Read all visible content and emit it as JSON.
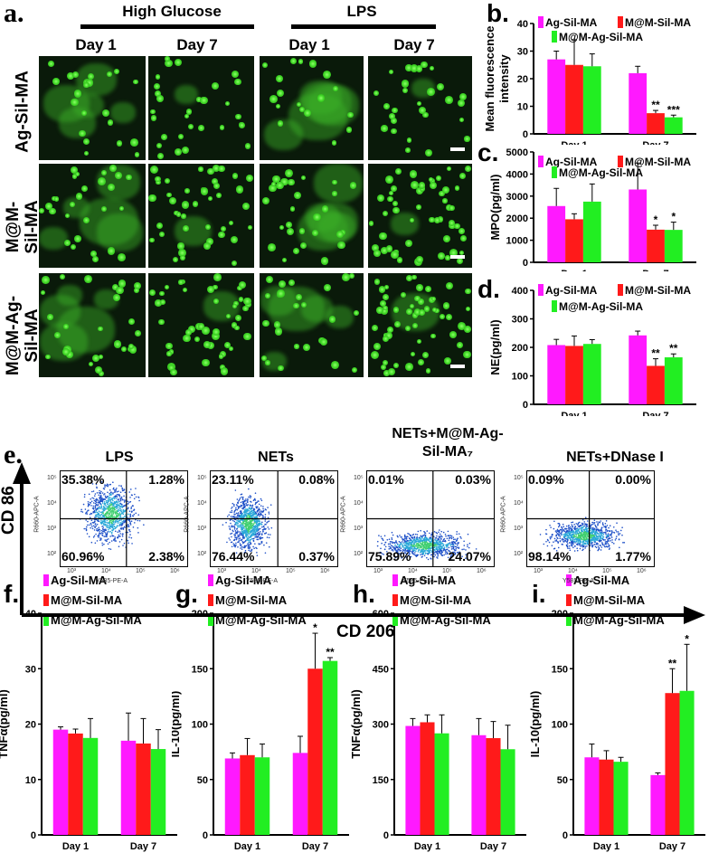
{
  "panel_a": {
    "label": "a.",
    "groups": [
      "High Glucose",
      "LPS"
    ],
    "columns": [
      "Day 1",
      "Day 7",
      "Day 1",
      "Day 7"
    ],
    "rows": [
      "Ag-Sil-MA",
      "M@M-Sil-MA",
      "M@M-Ag-Sil-MA"
    ],
    "row_lines": [
      [
        "Ag-Sil-MA"
      ],
      [
        "M@M-",
        "Sil-MA"
      ],
      [
        "M@M-Ag-",
        "Sil-MA"
      ]
    ]
  },
  "panel_e": {
    "label": "e.",
    "plots": [
      {
        "title": "LPS",
        "q": [
          "35.38%",
          "1.28%",
          "60.96%",
          "2.38%"
        ]
      },
      {
        "title": "NETs",
        "q": [
          "23.11%",
          "0.08%",
          "76.44%",
          "0.37%"
        ]
      },
      {
        "title": "NETs+M@M-Ag-Sil-MA₇",
        "title_lines": [
          "NETs+M@M-Ag-",
          "Sil-MA₇"
        ],
        "q": [
          "0.01%",
          "0.03%",
          "75.89%",
          "24.07%"
        ]
      },
      {
        "title": "NETs+DNase I",
        "q": [
          "0.09%",
          "0.00%",
          "98.14%",
          "1.77%"
        ]
      }
    ],
    "ylabel": "CD 86",
    "xlabel": "CD 206",
    "axis_x": "Y585-PE-A",
    "axis_y": "R660-APC-A"
  },
  "colors": {
    "Ag-Sil-MA": "#ff19ff",
    "M@M-Sil-MA": "#ff1a1a",
    "M@M-Ag-Sil-MA": "#22ee22"
  },
  "chart_data": [
    {
      "id": "b",
      "label": "b.",
      "type": "bar",
      "ylabel": "Mean fluorescence intensity",
      "ylim": [
        0,
        40
      ],
      "yticks": [
        0,
        10,
        20,
        30,
        40
      ],
      "categories": [
        "Day 1",
        "Day 7"
      ],
      "legend": [
        "Ag-Sil-MA",
        "M@M-Sil-MA",
        "M@M-Ag-Sil-MA"
      ],
      "series": [
        {
          "name": "Ag-Sil-MA",
          "values": [
            27,
            22
          ],
          "err": [
            3,
            2.5
          ],
          "sig": [
            "",
            ""
          ]
        },
        {
          "name": "M@M-Sil-MA",
          "values": [
            25,
            7.5
          ],
          "err": [
            9,
            1
          ],
          "sig": [
            "",
            "**"
          ]
        },
        {
          "name": "M@M-Ag-Sil-MA",
          "values": [
            24.5,
            6
          ],
          "err": [
            4.5,
            0.8
          ],
          "sig": [
            "",
            "***"
          ]
        }
      ]
    },
    {
      "id": "c",
      "label": "c.",
      "type": "bar",
      "ylabel": "MPO(pg/ml)",
      "ylim": [
        0,
        5000
      ],
      "yticks": [
        0,
        1000,
        2000,
        3000,
        4000,
        5000
      ],
      "categories": [
        "Day 1",
        "Day 7"
      ],
      "legend": [
        "Ag-Sil-MA",
        "M@M-Sil-MA",
        "M@M-Ag-Sil-MA"
      ],
      "series": [
        {
          "name": "Ag-Sil-MA",
          "values": [
            2550,
            3300
          ],
          "err": [
            800,
            1200
          ],
          "sig": [
            "",
            ""
          ]
        },
        {
          "name": "M@M-Sil-MA",
          "values": [
            1950,
            1480
          ],
          "err": [
            250,
            200
          ],
          "sig": [
            "",
            "*"
          ]
        },
        {
          "name": "M@M-Ag-Sil-MA",
          "values": [
            2750,
            1470
          ],
          "err": [
            800,
            350
          ],
          "sig": [
            "",
            "*"
          ]
        }
      ]
    },
    {
      "id": "d",
      "label": "d.",
      "type": "bar",
      "ylabel": "NE(pg/ml)",
      "ylim": [
        0,
        400
      ],
      "yticks": [
        0,
        100,
        200,
        300,
        400
      ],
      "categories": [
        "Day 1",
        "Day 7"
      ],
      "legend": [
        "Ag-Sil-MA",
        "M@M-Sil-MA",
        "M@M-Ag-Sil-MA"
      ],
      "series": [
        {
          "name": "Ag-Sil-MA",
          "values": [
            208,
            242
          ],
          "err": [
            20,
            15
          ],
          "sig": [
            "",
            ""
          ]
        },
        {
          "name": "M@M-Sil-MA",
          "values": [
            205,
            135
          ],
          "err": [
            35,
            25
          ],
          "sig": [
            "",
            "**"
          ]
        },
        {
          "name": "M@M-Ag-Sil-MA",
          "values": [
            212,
            165
          ],
          "err": [
            15,
            12
          ],
          "sig": [
            "",
            "**"
          ]
        }
      ]
    },
    {
      "id": "f",
      "label": "f.",
      "type": "bar",
      "ylabel": "TNFα(pg/ml)",
      "ylim": [
        0,
        40
      ],
      "yticks": [
        0,
        10,
        20,
        30,
        40
      ],
      "categories": [
        "Day 1",
        "Day 7"
      ],
      "legend": [
        "Ag-Sil-MA",
        "M@M-Sil-MA",
        "M@M-Ag-Sil-MA"
      ],
      "series": [
        {
          "name": "Ag-Sil-MA",
          "values": [
            19,
            17
          ],
          "err": [
            0.5,
            5
          ],
          "sig": [
            "",
            ""
          ]
        },
        {
          "name": "M@M-Sil-MA",
          "values": [
            18.3,
            16.5
          ],
          "err": [
            0.8,
            4.5
          ],
          "sig": [
            "",
            ""
          ]
        },
        {
          "name": "M@M-Ag-Sil-MA",
          "values": [
            17.5,
            15.5
          ],
          "err": [
            3.5,
            3.5
          ],
          "sig": [
            "",
            ""
          ]
        }
      ]
    },
    {
      "id": "g",
      "label": "g.",
      "type": "bar",
      "ylabel": "IL-10(pg/ml)",
      "ylim": [
        0,
        200
      ],
      "yticks": [
        0,
        50,
        100,
        150,
        200
      ],
      "categories": [
        "Day 1",
        "Day 7"
      ],
      "legend": [
        "Ag-Sil-MA",
        "M@M-Sil-MA",
        "M@M-Ag-Sil-MA"
      ],
      "series": [
        {
          "name": "Ag-Sil-MA",
          "values": [
            69,
            74
          ],
          "err": [
            5,
            15
          ],
          "sig": [
            "",
            ""
          ]
        },
        {
          "name": "M@M-Sil-MA",
          "values": [
            72,
            150
          ],
          "err": [
            15,
            32
          ],
          "sig": [
            "",
            "*"
          ]
        },
        {
          "name": "M@M-Ag-Sil-MA",
          "values": [
            70,
            157
          ],
          "err": [
            12,
            3
          ],
          "sig": [
            "",
            "**"
          ]
        }
      ]
    },
    {
      "id": "h",
      "label": "h.",
      "type": "bar",
      "ylabel": "TNFα(pg/ml)",
      "ylim": [
        0,
        600
      ],
      "yticks": [
        0,
        150,
        300,
        450,
        600
      ],
      "categories": [
        "Day 1",
        "Day 7"
      ],
      "legend": [
        "Ag-Sil-MA",
        "M@M-Sil-MA",
        "M@M-Ag-Sil-MA"
      ],
      "series": [
        {
          "name": "Ag-Sil-MA",
          "values": [
            295,
            270
          ],
          "err": [
            20,
            45
          ],
          "sig": [
            "",
            ""
          ]
        },
        {
          "name": "M@M-Sil-MA",
          "values": [
            305,
            262
          ],
          "err": [
            20,
            45
          ],
          "sig": [
            "",
            ""
          ]
        },
        {
          "name": "M@M-Ag-Sil-MA",
          "values": [
            275,
            232
          ],
          "err": [
            50,
            65
          ],
          "sig": [
            "",
            ""
          ]
        }
      ]
    },
    {
      "id": "i",
      "label": "i.",
      "type": "bar",
      "ylabel": "IL-10(pg/ml)",
      "ylim": [
        0,
        200
      ],
      "yticks": [
        0,
        50,
        100,
        150,
        200
      ],
      "categories": [
        "Day 1",
        "Day 7"
      ],
      "legend": [
        "Ag-Sil-MA",
        "M@M-Sil-MA",
        "M@M-Ag-Sil-MA"
      ],
      "series": [
        {
          "name": "Ag-Sil-MA",
          "values": [
            70,
            54
          ],
          "err": [
            12,
            2
          ],
          "sig": [
            "",
            ""
          ]
        },
        {
          "name": "M@M-Sil-MA",
          "values": [
            68,
            128
          ],
          "err": [
            8,
            22
          ],
          "sig": [
            "",
            "**"
          ]
        },
        {
          "name": "M@M-Ag-Sil-MA",
          "values": [
            66,
            130
          ],
          "err": [
            4,
            42
          ],
          "sig": [
            "",
            "*"
          ]
        }
      ]
    }
  ]
}
